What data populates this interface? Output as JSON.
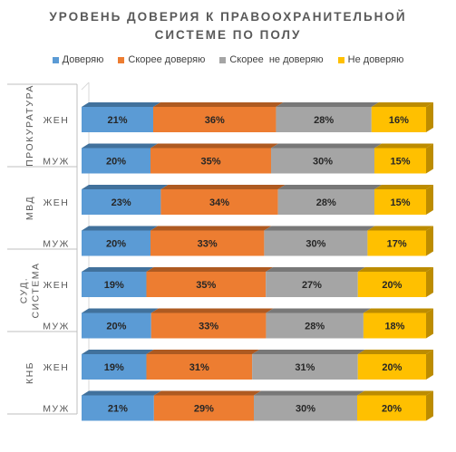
{
  "chart_data": {
    "type": "bar",
    "orientation": "horizontal",
    "stacked": "percent",
    "title_lines": [
      "УРОВЕНЬ ДОВЕРИЯ К ПРАВООХРАНИТЕЛЬНОЙ",
      "СИСТЕМЕ ПО ПОЛУ"
    ],
    "legend_position": "top",
    "groups": [
      {
        "label_lines": [
          "ПРОКУРАТУРА"
        ],
        "rows": [
          {
            "label": "ЖЕН",
            "values": [
              21,
              36,
              28,
              16
            ]
          },
          {
            "label": "МУЖ",
            "values": [
              20,
              35,
              30,
              15
            ]
          }
        ]
      },
      {
        "label_lines": [
          "МВД"
        ],
        "rows": [
          {
            "label": "ЖЕН",
            "values": [
              23,
              34,
              28,
              15
            ]
          },
          {
            "label": "МУЖ",
            "values": [
              20,
              33,
              30,
              17
            ]
          }
        ]
      },
      {
        "label_lines": [
          "СУД.",
          "СИСТЕМА"
        ],
        "rows": [
          {
            "label": "ЖЕН",
            "values": [
              19,
              35,
              27,
              20
            ]
          },
          {
            "label": "МУЖ",
            "values": [
              20,
              33,
              28,
              18
            ]
          }
        ]
      },
      {
        "label_lines": [
          "КНБ"
        ],
        "rows": [
          {
            "label": "ЖЕН",
            "values": [
              19,
              31,
              31,
              20
            ]
          },
          {
            "label": "МУЖ",
            "values": [
              21,
              29,
              30,
              20
            ]
          }
        ]
      }
    ],
    "series": [
      {
        "name": "Доверяю",
        "color": "#5B9BD5",
        "top_color": "#41719C"
      },
      {
        "name": "Скорее доверяю",
        "color": "#ED7D31",
        "top_color": "#AE5A21"
      },
      {
        "name": "Скорее  не доверяю",
        "color": "#A5A5A5",
        "top_color": "#787878"
      },
      {
        "name": "Не доверяю",
        "color": "#FFC000",
        "top_color": "#BC8C00"
      }
    ],
    "value_suffix": "%"
  }
}
